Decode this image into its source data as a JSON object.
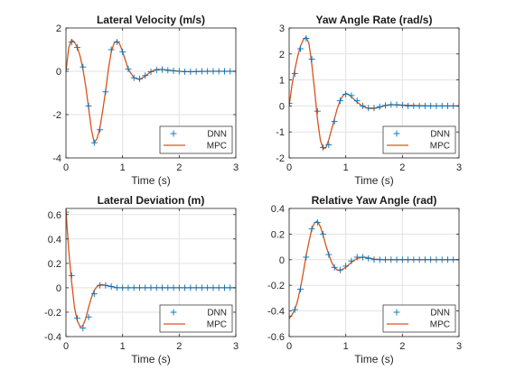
{
  "chart_data": [
    {
      "type": "line",
      "title": "Lateral Velocity (m/s)",
      "xlabel": "Time (s)",
      "ylabel": "",
      "xlim": [
        0,
        3
      ],
      "ylim": [
        -4,
        2
      ],
      "xticks": [
        0,
        1,
        2,
        3
      ],
      "yticks": [
        -4,
        -2,
        0,
        2
      ],
      "grid": true,
      "legend_position": "bottom-right",
      "series": [
        {
          "name": "DNN",
          "style": "markers",
          "marker": "plus",
          "color": "#0072BD",
          "x": [
            0,
            0.1,
            0.2,
            0.3,
            0.4,
            0.5,
            0.6,
            0.7,
            0.8,
            0.9,
            1.0,
            1.1,
            1.2,
            1.3,
            1.4,
            1.5,
            1.6,
            1.7,
            1.8,
            1.9,
            2.0,
            2.1,
            2.2,
            2.3,
            2.4,
            2.5,
            2.6,
            2.7,
            2.8,
            2.9,
            3.0
          ],
          "y": [
            0.1,
            1.35,
            1.1,
            0.2,
            -1.6,
            -3.3,
            -2.7,
            -0.95,
            1.0,
            1.35,
            0.9,
            0.1,
            -0.3,
            -0.35,
            -0.2,
            -0.02,
            0.06,
            0.08,
            0.05,
            0.02,
            0.0,
            -0.02,
            -0.02,
            -0.01,
            0.0,
            0.0,
            0.0,
            0.0,
            0.0,
            0.0,
            0.0
          ]
        },
        {
          "name": "MPC",
          "style": "line",
          "color": "#D95319",
          "x": [
            0,
            0.05,
            0.1,
            0.15,
            0.2,
            0.25,
            0.3,
            0.35,
            0.4,
            0.45,
            0.5,
            0.55,
            0.6,
            0.65,
            0.7,
            0.75,
            0.8,
            0.85,
            0.9,
            0.95,
            1.0,
            1.05,
            1.1,
            1.2,
            1.3,
            1.4,
            1.5,
            1.6,
            1.7,
            1.8,
            2.0,
            2.2,
            2.5,
            3.0
          ],
          "y": [
            0,
            1.1,
            1.45,
            1.35,
            1.1,
            0.7,
            0.1,
            -0.7,
            -1.7,
            -2.7,
            -3.3,
            -3.1,
            -2.6,
            -1.8,
            -0.9,
            0.1,
            0.9,
            1.3,
            1.4,
            1.25,
            0.9,
            0.5,
            0.1,
            -0.3,
            -0.38,
            -0.22,
            -0.02,
            0.08,
            0.09,
            0.05,
            0.0,
            -0.02,
            0.0,
            0.0
          ]
        }
      ]
    },
    {
      "type": "line",
      "title": "Yaw Angle Rate (rad/s)",
      "xlabel": "Time (s)",
      "ylabel": "",
      "xlim": [
        0,
        3
      ],
      "ylim": [
        -2,
        3
      ],
      "xticks": [
        0,
        1,
        2,
        3
      ],
      "yticks": [
        -2,
        -1,
        0,
        1,
        2,
        3
      ],
      "grid": true,
      "legend_position": "bottom-right",
      "series": [
        {
          "name": "DNN",
          "style": "markers",
          "marker": "plus",
          "color": "#0072BD",
          "x": [
            0,
            0.1,
            0.2,
            0.3,
            0.4,
            0.5,
            0.6,
            0.7,
            0.8,
            0.9,
            1.0,
            1.1,
            1.2,
            1.3,
            1.4,
            1.5,
            1.6,
            1.7,
            1.8,
            1.9,
            2.0,
            2.1,
            2.2,
            2.3,
            2.4,
            2.5,
            2.6,
            2.7,
            2.8,
            2.9,
            3.0
          ],
          "y": [
            0.1,
            1.25,
            2.2,
            2.6,
            1.8,
            -0.2,
            -1.6,
            -1.5,
            -0.6,
            0.2,
            0.45,
            0.4,
            0.2,
            0.0,
            -0.08,
            -0.08,
            -0.03,
            0.02,
            0.05,
            0.05,
            0.03,
            0.0,
            0.0,
            0.0,
            0.0,
            0.0,
            0.0,
            0.0,
            0.0,
            0.0,
            0.0
          ]
        },
        {
          "name": "MPC",
          "style": "line",
          "color": "#D95319",
          "x": [
            0,
            0.05,
            0.1,
            0.15,
            0.2,
            0.25,
            0.3,
            0.35,
            0.4,
            0.45,
            0.5,
            0.55,
            0.6,
            0.65,
            0.7,
            0.75,
            0.8,
            0.85,
            0.9,
            0.95,
            1.0,
            1.05,
            1.1,
            1.2,
            1.3,
            1.4,
            1.5,
            1.6,
            1.7,
            1.8,
            2.0,
            2.5,
            3.0
          ],
          "y": [
            0,
            0.8,
            1.4,
            1.9,
            2.3,
            2.55,
            2.65,
            2.4,
            1.6,
            0.6,
            -0.5,
            -1.3,
            -1.65,
            -1.6,
            -1.3,
            -0.9,
            -0.5,
            -0.1,
            0.2,
            0.4,
            0.48,
            0.45,
            0.35,
            0.15,
            -0.02,
            -0.1,
            -0.1,
            -0.05,
            0.02,
            0.05,
            0.03,
            0.0,
            0.0
          ]
        }
      ]
    },
    {
      "type": "line",
      "title": "Lateral Deviation (m)",
      "xlabel": "Time (s)",
      "ylabel": "",
      "xlim": [
        0,
        3
      ],
      "ylim": [
        -0.4,
        0.65
      ],
      "xticks": [
        0,
        1,
        2,
        3
      ],
      "yticks": [
        -0.4,
        -0.2,
        0,
        0.2,
        0.4,
        0.6
      ],
      "grid": true,
      "legend_position": "bottom-right",
      "series": [
        {
          "name": "DNN",
          "style": "markers",
          "marker": "plus",
          "color": "#0072BD",
          "x": [
            0,
            0.1,
            0.2,
            0.3,
            0.4,
            0.5,
            0.6,
            0.7,
            0.8,
            0.9,
            1.0,
            1.1,
            1.2,
            1.3,
            1.4,
            1.5,
            1.6,
            1.7,
            1.8,
            1.9,
            2.0,
            2.1,
            2.2,
            2.3,
            2.4,
            2.5,
            2.6,
            2.7,
            2.8,
            2.9,
            3.0
          ],
          "y": [
            0.62,
            0.1,
            -0.25,
            -0.33,
            -0.24,
            -0.05,
            0.02,
            0.02,
            0.01,
            0.0,
            0.0,
            0.0,
            0.0,
            0.0,
            0.0,
            0.0,
            0.0,
            0.0,
            0.0,
            0.0,
            0.0,
            0.0,
            0.0,
            0.0,
            0.0,
            0.0,
            0.0,
            0.0,
            0.0,
            0.0,
            0.0
          ]
        },
        {
          "name": "MPC",
          "style": "line",
          "color": "#D95319",
          "x": [
            0,
            0.02,
            0.05,
            0.1,
            0.15,
            0.2,
            0.25,
            0.3,
            0.35,
            0.4,
            0.45,
            0.5,
            0.55,
            0.6,
            0.65,
            0.7,
            0.8,
            0.9,
            1.0,
            1.2,
            1.5,
            2.0,
            3.0
          ],
          "y": [
            0.65,
            0.5,
            0.3,
            0.05,
            -0.16,
            -0.27,
            -0.32,
            -0.31,
            -0.25,
            -0.16,
            -0.08,
            -0.02,
            0.01,
            0.025,
            0.025,
            0.02,
            0.01,
            0.0,
            0.0,
            0.0,
            0.0,
            0.0,
            0.0
          ]
        }
      ]
    },
    {
      "type": "line",
      "title": "Relative Yaw Angle (rad)",
      "xlabel": "Time (s)",
      "ylabel": "",
      "xlim": [
        0,
        3
      ],
      "ylim": [
        -0.6,
        0.4
      ],
      "xticks": [
        0,
        1,
        2,
        3
      ],
      "yticks": [
        -0.6,
        -0.4,
        -0.2,
        0,
        0.2,
        0.4
      ],
      "grid": true,
      "legend_position": "bottom-right",
      "series": [
        {
          "name": "DNN",
          "style": "markers",
          "marker": "plus",
          "color": "#0072BD",
          "x": [
            0,
            0.1,
            0.2,
            0.3,
            0.4,
            0.5,
            0.6,
            0.7,
            0.8,
            0.9,
            1.0,
            1.1,
            1.2,
            1.3,
            1.4,
            1.5,
            1.6,
            1.7,
            1.8,
            1.9,
            2.0,
            2.1,
            2.2,
            2.3,
            2.4,
            2.5,
            2.6,
            2.7,
            2.8,
            2.9,
            3.0
          ],
          "y": [
            -0.44,
            -0.39,
            -0.23,
            0.02,
            0.24,
            0.29,
            0.2,
            0.04,
            -0.06,
            -0.08,
            -0.05,
            -0.01,
            0.02,
            0.02,
            0.01,
            0.0,
            0.0,
            0.0,
            0.0,
            0.0,
            0.0,
            0.0,
            0.0,
            0.0,
            0.0,
            0.0,
            0.0,
            0.0,
            0.0,
            0.0,
            0.0
          ]
        },
        {
          "name": "MPC",
          "style": "line",
          "color": "#D95319",
          "x": [
            0,
            0.05,
            0.1,
            0.15,
            0.2,
            0.25,
            0.3,
            0.35,
            0.4,
            0.45,
            0.5,
            0.55,
            0.6,
            0.65,
            0.7,
            0.75,
            0.8,
            0.85,
            0.9,
            1.0,
            1.1,
            1.2,
            1.3,
            1.4,
            1.5,
            1.7,
            2.0,
            3.0
          ],
          "y": [
            -0.46,
            -0.43,
            -0.39,
            -0.32,
            -0.22,
            -0.1,
            0.03,
            0.14,
            0.24,
            0.29,
            0.3,
            0.26,
            0.19,
            0.11,
            0.04,
            -0.02,
            -0.06,
            -0.08,
            -0.085,
            -0.06,
            -0.02,
            0.01,
            0.02,
            0.015,
            0.005,
            0.0,
            0.0,
            0.0
          ]
        }
      ]
    }
  ]
}
